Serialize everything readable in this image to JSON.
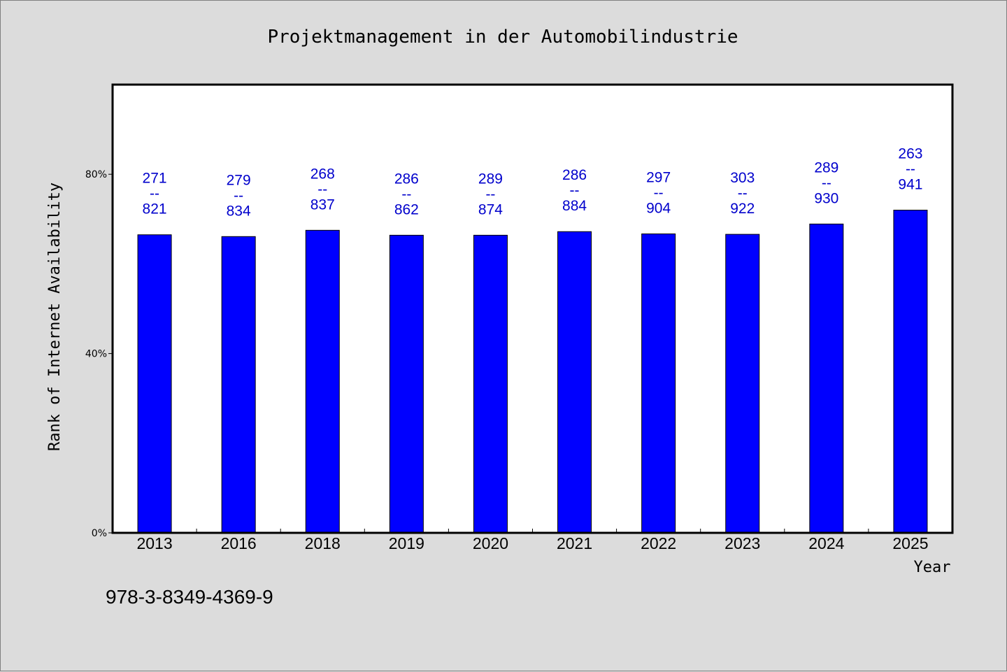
{
  "chart_data": {
    "type": "bar",
    "title": "Projektmanagement in der Automobilindustrie",
    "xlabel": "Year",
    "ylabel": "Rank of Internet Availability",
    "categories": [
      "2013",
      "2016",
      "2018",
      "2019",
      "2020",
      "2021",
      "2022",
      "2023",
      "2024",
      "2025"
    ],
    "values": [
      66.5,
      66.1,
      67.5,
      66.4,
      66.4,
      67.2,
      66.7,
      66.6,
      68.9,
      72.0
    ],
    "data_labels": [
      {
        "top": "271",
        "mid": "--",
        "bottom": "821"
      },
      {
        "top": "279",
        "mid": "--",
        "bottom": "834"
      },
      {
        "top": "268",
        "mid": "--",
        "bottom": "837"
      },
      {
        "top": "286",
        "mid": "--",
        "bottom": "862"
      },
      {
        "top": "289",
        "mid": "--",
        "bottom": "874"
      },
      {
        "top": "286",
        "mid": "--",
        "bottom": "884"
      },
      {
        "top": "297",
        "mid": "--",
        "bottom": "904"
      },
      {
        "top": "303",
        "mid": "--",
        "bottom": "922"
      },
      {
        "top": "289",
        "mid": "--",
        "bottom": "930"
      },
      {
        "top": "263",
        "mid": "--",
        "bottom": "941"
      }
    ],
    "ylim": [
      0,
      100
    ],
    "yticks": [
      0,
      40,
      80
    ],
    "ytick_labels": [
      "0%",
      "40%",
      "80%"
    ],
    "grid": false,
    "bar_color": "#0000ff",
    "label_color": "#0000cc",
    "background_color": "#dcdcdc",
    "plot_background": "#ffffff"
  },
  "footer": {
    "isbn": "978-3-8349-4369-9"
  }
}
